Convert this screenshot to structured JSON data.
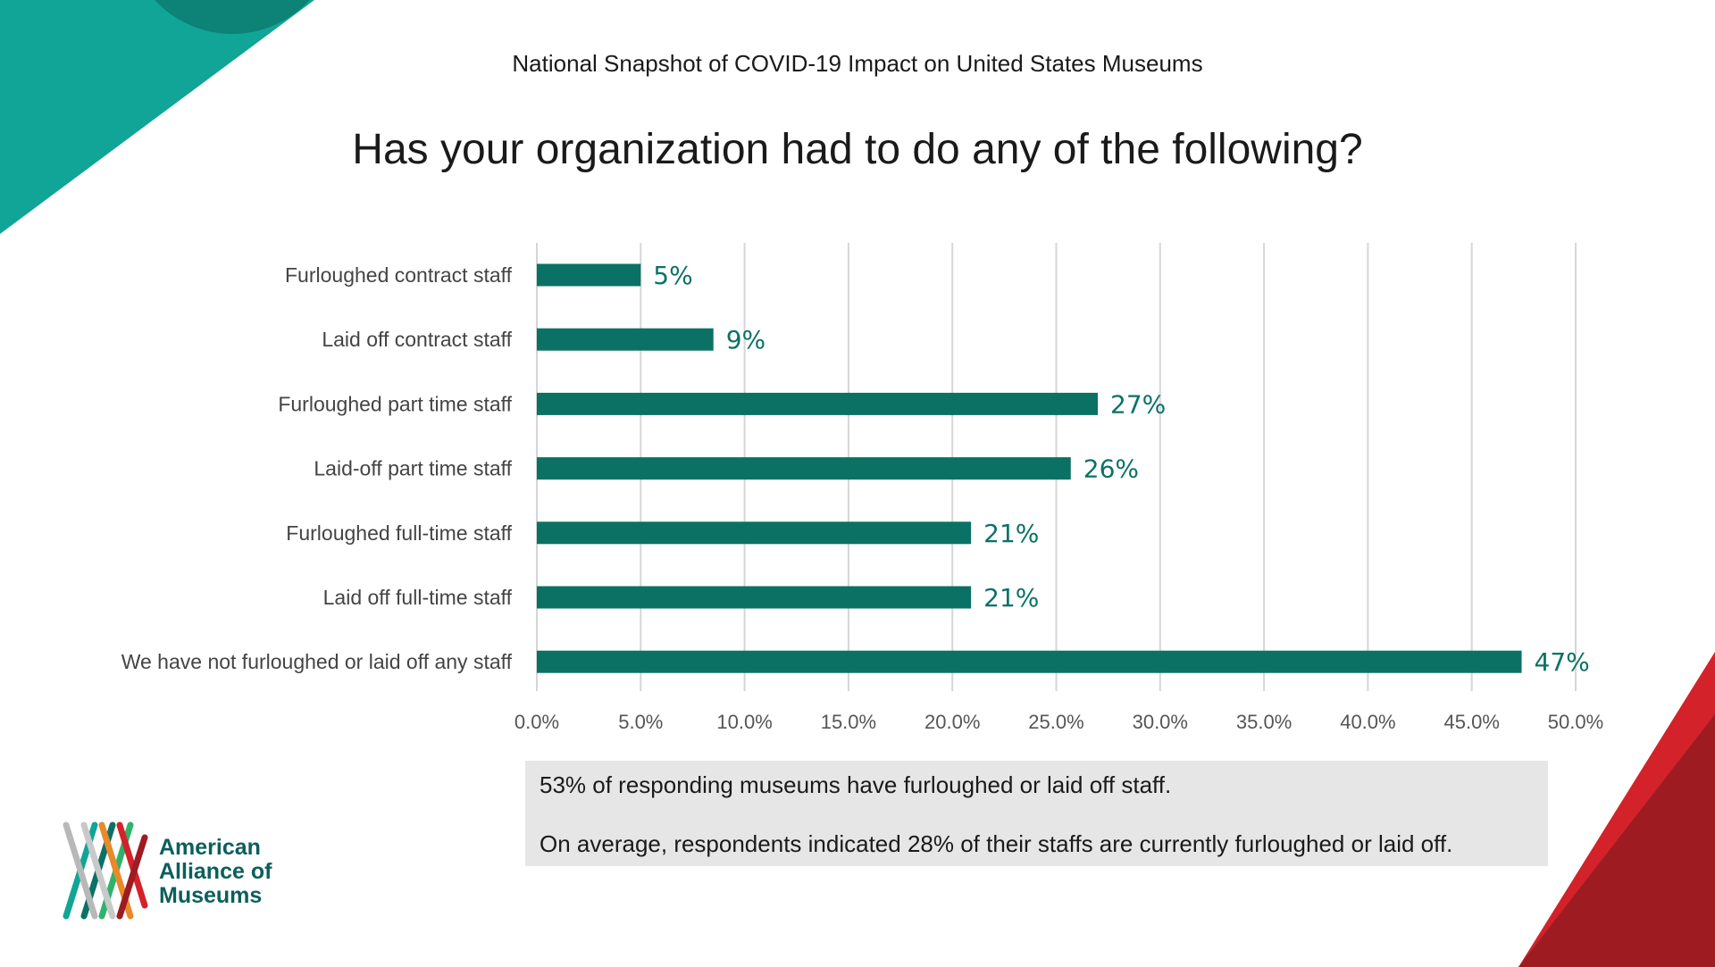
{
  "header": {
    "supertitle": "National Snapshot of COVID-19 Impact on United States Museums",
    "question": "Has your organization had to do any of the following?"
  },
  "colors": {
    "bar": "#0b7165",
    "label": "#0b7165",
    "teal_light": "#10a596",
    "teal_dark": "#0c8376",
    "red": "#d3222a",
    "red_dark": "#9e1b22",
    "summary_bg": "#e6e6e6"
  },
  "chart_data": {
    "type": "bar",
    "orientation": "horizontal",
    "title": "Has your organization had to do any of the following?",
    "categories": [
      "Furloughed contract staff",
      "Laid off contract staff",
      "Furloughed part time staff",
      "Laid-off part time staff",
      "Furloughed full-time staff",
      "Laid off full-time staff",
      "We have not furloughed or laid off any staff"
    ],
    "values": [
      5,
      8.5,
      27,
      25.7,
      20.9,
      20.9,
      47.4
    ],
    "data_labels": [
      "5%",
      "9%",
      "27%",
      "26%",
      "21%",
      "21%",
      "47%"
    ],
    "xlim": [
      0,
      50
    ],
    "xticks": [
      "0.0%",
      "5.0%",
      "10.0%",
      "15.0%",
      "20.0%",
      "25.0%",
      "30.0%",
      "35.0%",
      "40.0%",
      "45.0%",
      "50.0%"
    ],
    "xlabel": "",
    "ylabel": "",
    "grid": "vertical"
  },
  "summary": {
    "line1": "53% of responding museums have furloughed or laid off staff.",
    "line2": "On average, respondents indicated 28% of their staffs are currently furloughed or laid off."
  },
  "logo": {
    "line1": "American",
    "line2": "Alliance of",
    "line3": "Museums"
  }
}
